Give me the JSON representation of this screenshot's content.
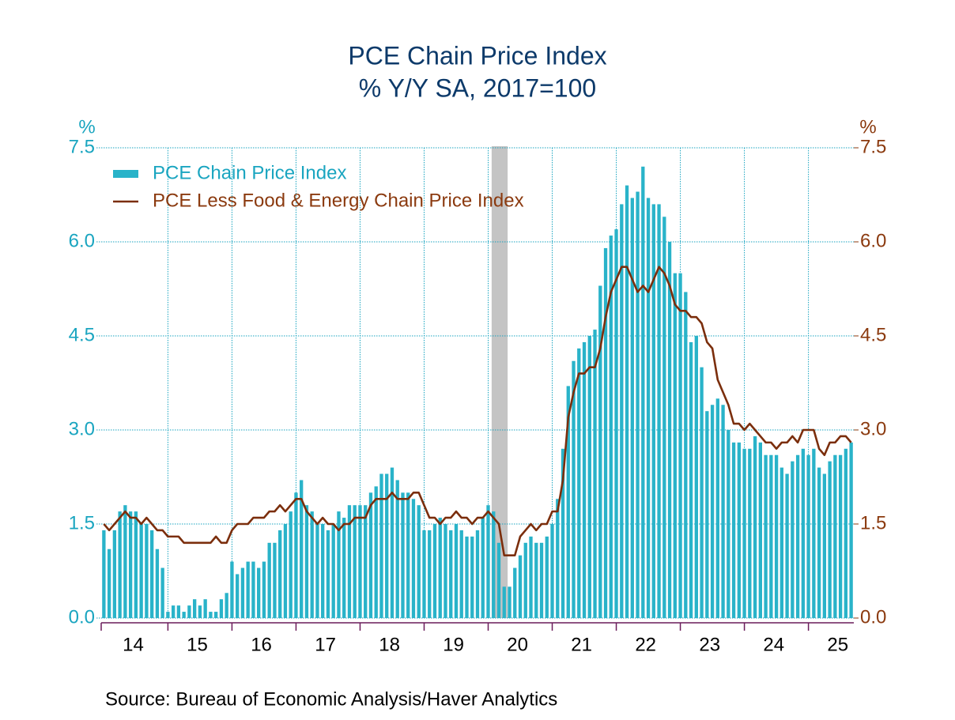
{
  "chart_data": {
    "type": "bar_line",
    "title": "PCE Chain Price Index",
    "subtitle": "% Y/Y   SA, 2017=100",
    "y_unit": "%",
    "y2_unit": "%",
    "source": "Source:  Bureau of Economic Analysis/Haver Analytics",
    "categories": [
      null,
      null,
      null,
      null,
      null,
      null,
      "14",
      null,
      null,
      null,
      null,
      null,
      null,
      null,
      null,
      null,
      null,
      null,
      "15",
      null,
      null,
      null,
      null,
      null,
      null,
      null,
      null,
      null,
      null,
      null,
      "16",
      null,
      null,
      null,
      null,
      null,
      null,
      null,
      null,
      null,
      null,
      null,
      "17",
      null,
      null,
      null,
      null,
      null,
      null,
      null,
      null,
      null,
      null,
      null,
      "18",
      null,
      null,
      null,
      null,
      null,
      null,
      null,
      null,
      null,
      null,
      null,
      "19",
      null,
      null,
      null,
      null,
      null,
      null,
      null,
      null,
      null,
      null,
      null,
      "20",
      null,
      null,
      null,
      null,
      null,
      null,
      null,
      null,
      null,
      null,
      null,
      "21",
      null,
      null,
      null,
      null,
      null,
      null,
      null,
      null,
      null,
      null,
      null,
      "22",
      null,
      null,
      null,
      null,
      null,
      null,
      null,
      null,
      null,
      null,
      null,
      "23",
      null,
      null,
      null,
      null,
      null,
      null,
      null,
      null,
      null,
      null,
      null,
      "24",
      null,
      null,
      null,
      null,
      null,
      null,
      null,
      null,
      null,
      null,
      null,
      "25",
      null,
      null
    ],
    "recession": [
      73,
      75
    ],
    "series": [
      {
        "name": "PCE Chain Price Index",
        "type": "bar",
        "color": "#29b3c9",
        "values": [
          1.4,
          1.1,
          1.4,
          1.7,
          1.8,
          1.7,
          1.7,
          1.5,
          1.5,
          1.4,
          1.1,
          0.8,
          0.1,
          0.2,
          0.2,
          0.1,
          0.2,
          0.3,
          0.2,
          0.3,
          0.1,
          0.1,
          0.3,
          0.4,
          0.9,
          0.7,
          0.8,
          0.9,
          0.9,
          0.8,
          0.9,
          1.2,
          1.2,
          1.4,
          1.5,
          1.7,
          2.0,
          2.2,
          1.8,
          1.7,
          1.5,
          1.5,
          1.4,
          1.5,
          1.7,
          1.6,
          1.8,
          1.8,
          1.8,
          1.8,
          2.0,
          2.1,
          2.3,
          2.3,
          2.4,
          2.2,
          2.0,
          2.0,
          1.9,
          1.8,
          1.4,
          1.4,
          1.5,
          1.6,
          1.5,
          1.4,
          1.5,
          1.4,
          1.3,
          1.3,
          1.4,
          1.6,
          1.8,
          1.7,
          1.2,
          0.5,
          0.5,
          0.8,
          1.0,
          1.2,
          1.3,
          1.2,
          1.2,
          1.3,
          1.5,
          1.9,
          2.7,
          3.7,
          4.1,
          4.3,
          4.4,
          4.5,
          4.6,
          5.3,
          5.9,
          6.1,
          6.2,
          6.6,
          6.9,
          6.7,
          6.8,
          7.2,
          6.7,
          6.6,
          6.6,
          6.4,
          6.0,
          5.5,
          5.5,
          5.2,
          4.4,
          4.5,
          4.0,
          3.3,
          3.4,
          3.5,
          3.4,
          3.0,
          2.8,
          2.8,
          2.7,
          2.7,
          2.9,
          2.8,
          2.6,
          2.6,
          2.6,
          2.4,
          2.3,
          2.5,
          2.6,
          2.7,
          2.6,
          2.7,
          2.4,
          2.3,
          2.5,
          2.6,
          2.6,
          2.7,
          2.8
        ]
      },
      {
        "name": "PCE Less Food & Energy Chain Price Index",
        "type": "line",
        "axis": "y2",
        "color": "#7b2e0c",
        "values": [
          1.5,
          1.4,
          1.5,
          1.6,
          1.7,
          1.6,
          1.6,
          1.5,
          1.6,
          1.5,
          1.4,
          1.4,
          1.3,
          1.3,
          1.3,
          1.2,
          1.2,
          1.2,
          1.2,
          1.2,
          1.2,
          1.3,
          1.2,
          1.2,
          1.4,
          1.5,
          1.5,
          1.5,
          1.6,
          1.6,
          1.6,
          1.7,
          1.7,
          1.8,
          1.7,
          1.8,
          1.9,
          1.9,
          1.7,
          1.6,
          1.5,
          1.6,
          1.5,
          1.5,
          1.4,
          1.5,
          1.5,
          1.6,
          1.6,
          1.6,
          1.8,
          1.9,
          1.9,
          1.9,
          2.0,
          1.9,
          1.9,
          1.9,
          2.0,
          2.0,
          1.8,
          1.6,
          1.6,
          1.5,
          1.6,
          1.6,
          1.7,
          1.6,
          1.6,
          1.5,
          1.6,
          1.6,
          1.7,
          1.6,
          1.5,
          1.0,
          1.0,
          1.0,
          1.3,
          1.4,
          1.5,
          1.4,
          1.5,
          1.5,
          1.7,
          1.7,
          2.2,
          3.2,
          3.6,
          3.9,
          3.9,
          4.0,
          4.0,
          4.3,
          4.8,
          5.2,
          5.4,
          5.6,
          5.6,
          5.4,
          5.2,
          5.3,
          5.2,
          5.4,
          5.6,
          5.5,
          5.3,
          5.0,
          4.9,
          4.9,
          4.8,
          4.8,
          4.7,
          4.4,
          4.3,
          3.8,
          3.6,
          3.4,
          3.1,
          3.1,
          3.0,
          3.1,
          3.0,
          2.9,
          2.8,
          2.8,
          2.7,
          2.8,
          2.8,
          2.9,
          2.8,
          3.0,
          3.0,
          3.0,
          2.7,
          2.6,
          2.8,
          2.8,
          2.9,
          2.9,
          2.8
        ]
      }
    ],
    "ylim": [
      0,
      7.5
    ],
    "yticks": [
      {
        "value": 0,
        "label": "0.0"
      },
      1.5,
      {
        "value": 3,
        "label": "3.0"
      },
      4.5,
      {
        "value": 6,
        "label": "6.0"
      },
      7.5
    ],
    "y2lim": [
      0,
      7.5
    ],
    "y2ticks": [
      {
        "value": 0,
        "label": "0.0"
      },
      1.5,
      {
        "value": 3,
        "label": "3.0"
      },
      4.5,
      {
        "value": 6,
        "label": "6.0"
      },
      7.5
    ],
    "y_color": "#1aa5c0",
    "y2_color": "#8b3a0f",
    "grid": true,
    "legend": "top-left"
  }
}
